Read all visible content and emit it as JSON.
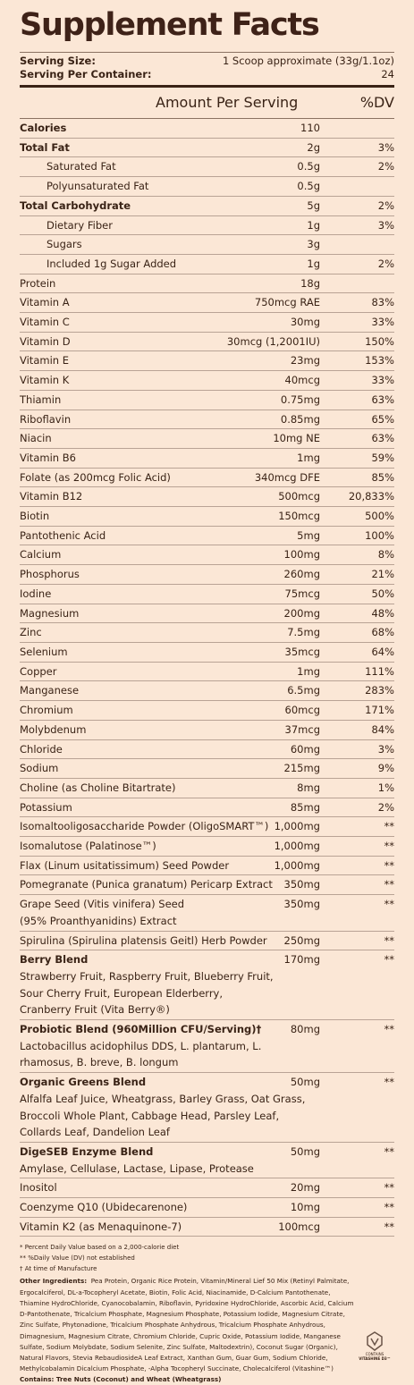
{
  "title": "Supplement Facts",
  "serving": [
    {
      "label": "Serving Size:",
      "value": "1 Scoop approximate (33g/1.1oz)"
    },
    {
      "label": "Serving Per Container:",
      "value": "24"
    }
  ],
  "header": {
    "amount": "Amount Per Serving",
    "dv": "%DV"
  },
  "rows": [
    {
      "name": "Calories",
      "amount": "110",
      "bold": true
    },
    {
      "name": "Total Fat",
      "amount": "2g",
      "dv": "3%",
      "bold": true
    },
    {
      "name": "Saturated Fat",
      "amount": "0.5g",
      "dv": "2%",
      "indent": true
    },
    {
      "name": "Polyunsaturated Fat",
      "amount": "0.5g",
      "indent": true
    },
    {
      "name": "Total Carbohydrate",
      "amount": "5g",
      "dv": "2%",
      "bold": true
    },
    {
      "name": "Dietary Fiber",
      "amount": "1g",
      "dv": "3%",
      "indent": true
    },
    {
      "name": "Sugars",
      "amount": "3g",
      "indent": true
    },
    {
      "name": "Included 1g Sugar Added",
      "amount": "1g",
      "dv": "2%",
      "indent": true
    },
    {
      "name": "Protein",
      "amount": "18g"
    },
    {
      "name": "Vitamin A",
      "amount": "750mcg RAE",
      "dv": "83%"
    },
    {
      "name": "Vitamin C",
      "amount": "30mg",
      "dv": "33%"
    },
    {
      "name": "Vitamin D",
      "amount": "30mcg (1,2001IU)",
      "dv": "150%"
    },
    {
      "name": "Vitamin E",
      "amount": "23mg",
      "dv": "153%"
    },
    {
      "name": "Vitamin K",
      "amount": "40mcg",
      "dv": "33%"
    },
    {
      "name": "Thiamin",
      "amount": "0.75mg",
      "dv": "63%"
    },
    {
      "name": "Riboflavin",
      "amount": "0.85mg",
      "dv": "65%"
    },
    {
      "name": "Niacin",
      "amount": "10mg NE",
      "dv": "63%"
    },
    {
      "name": "Vitamin B6",
      "amount": "1mg",
      "dv": "59%"
    },
    {
      "name": "Folate (as 200mcg Folic Acid)",
      "amount": "340mcg DFE",
      "dv": "85%"
    },
    {
      "name": "Vitamin B12",
      "amount": "500mcg",
      "dv": "20,833%"
    },
    {
      "name": "Biotin",
      "amount": "150mcg",
      "dv": "500%"
    },
    {
      "name": "Pantothenic Acid",
      "amount": "5mg",
      "dv": "100%"
    },
    {
      "name": "Calcium",
      "amount": "100mg",
      "dv": "8%"
    },
    {
      "name": "Phosphorus",
      "amount": "260mg",
      "dv": "21%"
    },
    {
      "name": "Iodine",
      "amount": "75mcg",
      "dv": "50%"
    },
    {
      "name": "Magnesium",
      "amount": "200mg",
      "dv": "48%"
    },
    {
      "name": "Zinc",
      "amount": "7.5mg",
      "dv": "68%"
    },
    {
      "name": "Selenium",
      "amount": "35mcg",
      "dv": "64%"
    },
    {
      "name": "Copper",
      "amount": "1mg",
      "dv": "111%"
    },
    {
      "name": "Manganese",
      "amount": "6.5mg",
      "dv": "283%"
    },
    {
      "name": "Chromium",
      "amount": "60mcg",
      "dv": "171%"
    },
    {
      "name": "Molybdenum",
      "amount": "37mcg",
      "dv": "84%"
    },
    {
      "name": "Chloride",
      "amount": "60mg",
      "dv": "3%"
    },
    {
      "name": "Sodium",
      "amount": "215mg",
      "dv": "9%"
    },
    {
      "name": "Choline (as Choline Bitartrate)",
      "amount": "8mg",
      "dv": "1%"
    },
    {
      "name": "Potassium",
      "amount": "85mg",
      "dv": "2%"
    },
    {
      "name": "Isomaltooligosaccharide Powder (OligoSMART™)",
      "amount": "1,000mg",
      "dv": "**"
    },
    {
      "name": "Isomalutose (Palatinose™)",
      "amount": "1,000mg",
      "dv": "**"
    },
    {
      "name": "Flax (Linum usitatissimum) Seed Powder",
      "amount": "1,000mg",
      "dv": "**"
    },
    {
      "name": "Pomegranate (Punica granatum) Pericarp Extract",
      "amount": "350mg",
      "dv": "**"
    },
    {
      "name": "Grape Seed (Vitis vinifera) Seed",
      "lines": [
        "(95% Proanthyanidins) Extract"
      ],
      "amount": "350mg",
      "dv": "**"
    },
    {
      "name": "Spirulina (Spirulina platensis Geitl) Herb Powder",
      "amount": "250mg",
      "dv": "**"
    },
    {
      "name": "Berry Blend",
      "bold": true,
      "lines": [
        "Strawberry Fruit, Raspberry Fruit, Blueberry Fruit,",
        "Sour Cherry Fruit, European Elderberry,",
        "Cranberry Fruit  (Vita Berry®)"
      ],
      "amount": "170mg",
      "dv": "**"
    },
    {
      "name": "Probiotic Blend (960Million CFU/Serving)†",
      "bold": true,
      "lines": [
        "Lactobacillus acidophilus DDS, L. plantarum, L.",
        "rhamosus, B. breve, B. longum"
      ],
      "amount": "80mg",
      "dv": "**"
    },
    {
      "name": "Organic Greens Blend",
      "bold": true,
      "lines": [
        "Alfalfa Leaf Juice, Wheatgrass, Barley Grass, Oat Grass,",
        "Broccoli Whole Plant, Cabbage Head, Parsley Leaf,",
        "Collards Leaf, Dandelion Leaf"
      ],
      "amount": "50mg",
      "dv": "**"
    },
    {
      "name": "DigeSEB Enzyme Blend",
      "bold": true,
      "lines": [
        "Amylase, Cellulase, Lactase, Lipase, Protease"
      ],
      "amount": "50mg",
      "dv": "**"
    },
    {
      "name": "Inositol",
      "amount": "20mg",
      "dv": "**"
    },
    {
      "name": "Coenzyme Q10 (Ubidecarenone)",
      "amount": "10mg",
      "dv": "**"
    },
    {
      "name": "Vitamin K2 (as Menaquinone-7)",
      "amount": "100mcg",
      "dv": "**"
    }
  ],
  "footnotes": [
    "* Percent Daily Value based on a 2,000-calorie diet",
    "** %Daily Value (DV) not established",
    "† At time of Manufacture"
  ],
  "ingredients": {
    "label": "Other Ingredients:",
    "text": "Pea Protein, Organic Rice Protein, Vitamin/Mineral Lief 50 Mix (Retinyl Palmitate, Ergocalciferol, DL-a-Tocopheryl Acetate, Biotin, Folic Acid, Niacinamide, D-Calcium Pantothenate, Thiamine HydroChloride, Cyanocobalamin, Riboflavin, Pyridoxine HydroChloride, Ascorbic Acid, Calcium D-Pantothenate, Tricalcium Phosphate, Magnesium Phosphate, Potassium Iodide, Magnesium Citrate, Zinc Sulfate, Phytonadione, Tricalcium Phosphate Anhydrous, Tricalcium Phosphate Anhydrous, Dimagnesium, Magnesium Citrate, Chromium Chloride, Cupric Oxide, Potassium Iodide, Manganese Sulfate, Sodium Molybdate, Sodium Selenite, Zinc Sulfate, Maltodextrin), Coconut Sugar (Organic), Natural Flavors, Stevia RebaudiosideA Leaf Extract, Xanthan Gum, Guar Gum, Sodium Chloride, Methylcobalamin Dicalcium Phosphate, -Alpha Tocopheryl Succinate, Cholecalciferol (Vitashine™)"
  },
  "contains": "Contains: Tree Nuts (Coconut) and Wheat (Wheatgrass)",
  "logo": {
    "top": "CONTAINS",
    "bottom": "VITASHINE D3™"
  }
}
